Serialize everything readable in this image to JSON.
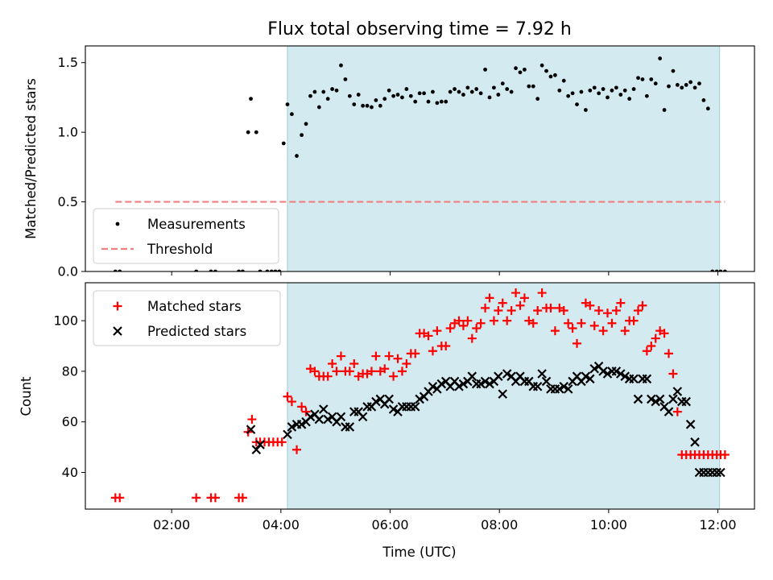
{
  "chart_data": [
    {
      "type": "scatter",
      "title": "Flux total observing time = 7.92 h",
      "ylabel": "Matched/Predicted stars",
      "xlabel": "",
      "xlim": [
        0.42,
        12.67
      ],
      "ylim": [
        0,
        1.62
      ],
      "yticks": [
        0.0,
        0.5,
        1.0,
        1.5
      ],
      "ytick_labels": [
        "0.0",
        "0.5",
        "1.0",
        "1.5"
      ],
      "xticks": [
        2,
        4,
        6,
        8,
        10,
        12
      ],
      "show_xtick_labels": false,
      "shaded_interval": [
        4.12,
        12.03
      ],
      "shade_color": "#d3eaf0",
      "threshold": {
        "value": 0.5,
        "x_range": [
          0.97,
          12.13
        ],
        "color": "#f08080",
        "label": "Threshold"
      },
      "legend": {
        "placement": "lower-left",
        "entries": [
          "Measurements",
          "Threshold"
        ]
      },
      "series": [
        {
          "name": "Measurements",
          "marker": "dot",
          "color": "#000000",
          "x": [
            0.97,
            1.05,
            2.45,
            2.72,
            2.8,
            3.23,
            3.3,
            3.4,
            3.45,
            3.55,
            3.62,
            3.75,
            3.83,
            3.9,
            3.97,
            4.05,
            4.12,
            4.2,
            4.29,
            4.38,
            4.46,
            4.54,
            4.62,
            4.7,
            4.78,
            4.86,
            4.94,
            5.02,
            5.1,
            5.18,
            5.26,
            5.34,
            5.42,
            5.5,
            5.58,
            5.66,
            5.74,
            5.82,
            5.9,
            5.98,
            6.06,
            6.14,
            6.22,
            6.3,
            6.38,
            6.46,
            6.54,
            6.62,
            6.7,
            6.78,
            6.86,
            6.94,
            7.02,
            7.1,
            7.18,
            7.26,
            7.34,
            7.42,
            7.5,
            7.58,
            7.66,
            7.74,
            7.82,
            7.9,
            7.98,
            8.06,
            8.14,
            8.22,
            8.3,
            8.38,
            8.46,
            8.54,
            8.62,
            8.7,
            8.78,
            8.86,
            8.94,
            9.02,
            9.1,
            9.18,
            9.26,
            9.34,
            9.42,
            9.5,
            9.58,
            9.66,
            9.74,
            9.82,
            9.9,
            9.98,
            10.06,
            10.14,
            10.22,
            10.3,
            10.38,
            10.46,
            10.54,
            10.62,
            10.7,
            10.78,
            10.86,
            10.94,
            11.02,
            11.1,
            11.18,
            11.26,
            11.34,
            11.42,
            11.5,
            11.58,
            11.66,
            11.74,
            11.82,
            11.9,
            11.98,
            12.05,
            12.13
          ],
          "y": [
            0,
            0,
            0,
            0,
            0,
            0,
            0,
            1.0,
            1.24,
            1.0,
            0,
            0,
            0,
            0,
            0,
            0.92,
            1.2,
            1.13,
            0.83,
            0.98,
            1.06,
            1.26,
            1.29,
            1.18,
            1.29,
            1.24,
            1.31,
            1.3,
            1.48,
            1.38,
            1.26,
            1.2,
            1.27,
            1.19,
            1.19,
            1.18,
            1.23,
            1.19,
            1.24,
            1.3,
            1.26,
            1.27,
            1.25,
            1.31,
            1.26,
            1.22,
            1.28,
            1.28,
            1.22,
            1.29,
            1.21,
            1.22,
            1.22,
            1.29,
            1.31,
            1.29,
            1.27,
            1.32,
            1.29,
            1.31,
            1.28,
            1.45,
            1.25,
            1.32,
            1.27,
            1.35,
            1.31,
            1.29,
            1.46,
            1.43,
            1.45,
            1.33,
            1.33,
            1.24,
            1.48,
            1.44,
            1.4,
            1.41,
            1.3,
            1.37,
            1.26,
            1.28,
            1.2,
            1.29,
            1.16,
            1.3,
            1.32,
            1.28,
            1.31,
            1.25,
            1.3,
            1.32,
            1.27,
            1.3,
            1.24,
            1.31,
            1.39,
            1.38,
            1.26,
            1.38,
            1.35,
            1.53,
            1.16,
            1.33,
            1.44,
            1.34,
            1.32,
            1.34,
            1.36,
            1.32,
            1.35,
            1.23,
            1.17,
            0.0,
            0.0,
            0.0,
            0.0
          ],
          "x_clip_note": "subset of visible dots"
        }
      ]
    },
    {
      "type": "scatter",
      "title": "",
      "ylabel": "Count",
      "xlabel": "Time (UTC)",
      "xlim": [
        0.42,
        12.67
      ],
      "ylim": [
        25.5,
        115
      ],
      "yticks": [
        40,
        60,
        80,
        100
      ],
      "ytick_labels": [
        "40",
        "60",
        "80",
        "100"
      ],
      "xticks": [
        2,
        4,
        6,
        8,
        10,
        12
      ],
      "xtick_labels": [
        "02:00",
        "04:00",
        "06:00",
        "08:00",
        "10:00",
        "12:00"
      ],
      "shaded_interval": [
        4.12,
        12.03
      ],
      "shade_color": "#d3eaf0",
      "legend": {
        "placement": "top-left",
        "entries": [
          "Matched stars",
          "Predicted stars"
        ]
      },
      "series": [
        {
          "name": "Matched stars",
          "marker": "plus",
          "color": "#ff0000",
          "x": [
            0.97,
            1.05,
            2.45,
            2.72,
            2.8,
            3.23,
            3.3,
            3.4,
            3.47,
            3.55,
            3.62,
            3.7,
            3.78,
            3.86,
            3.94,
            4.02,
            4.12,
            4.2,
            4.29,
            4.38,
            4.46,
            4.54,
            4.62,
            4.7,
            4.78,
            4.86,
            4.94,
            5.02,
            5.1,
            5.18,
            5.26,
            5.34,
            5.42,
            5.5,
            5.58,
            5.66,
            5.74,
            5.82,
            5.9,
            5.98,
            6.06,
            6.14,
            6.22,
            6.3,
            6.38,
            6.46,
            6.54,
            6.62,
            6.7,
            6.78,
            6.86,
            6.94,
            7.02,
            7.1,
            7.18,
            7.26,
            7.34,
            7.42,
            7.5,
            7.58,
            7.66,
            7.74,
            7.82,
            7.9,
            7.98,
            8.06,
            8.14,
            8.22,
            8.3,
            8.38,
            8.46,
            8.54,
            8.62,
            8.7,
            8.78,
            8.86,
            8.94,
            9.02,
            9.1,
            9.18,
            9.26,
            9.34,
            9.42,
            9.5,
            9.58,
            9.66,
            9.74,
            9.82,
            9.9,
            9.98,
            10.06,
            10.14,
            10.22,
            10.3,
            10.38,
            10.46,
            10.54,
            10.62,
            10.7,
            10.78,
            10.86,
            10.94,
            11.02,
            11.1,
            11.18,
            11.26,
            11.34,
            11.42,
            11.5,
            11.58,
            11.66,
            11.74,
            11.82,
            11.9,
            11.98,
            12.05,
            12.13
          ],
          "y": [
            30,
            30,
            30,
            30,
            30,
            30,
            30,
            56,
            61,
            52,
            52,
            52,
            52,
            52,
            52,
            52,
            70,
            68,
            49,
            66,
            64,
            81,
            80,
            78,
            78,
            78,
            83,
            80,
            86,
            80,
            80,
            83,
            78,
            79,
            79,
            80,
            86,
            80,
            81,
            86,
            78,
            85,
            80,
            83,
            87,
            87,
            95,
            95,
            94,
            88,
            96,
            90,
            90,
            97,
            99,
            100,
            98,
            100,
            93,
            97,
            99,
            105,
            109,
            100,
            104,
            107,
            100,
            104,
            111,
            106,
            109,
            100,
            99,
            104,
            111,
            105,
            105,
            96,
            105,
            104,
            99,
            97,
            91,
            99,
            107,
            106,
            98,
            104,
            96,
            103,
            99,
            104,
            107,
            96,
            100,
            100,
            104,
            106,
            88,
            90,
            93,
            96,
            95,
            87,
            79,
            64,
            47,
            47,
            47,
            47,
            47,
            47,
            47,
            47,
            47,
            47,
            47
          ],
          "x_clip_note": "subset of visible markers"
        },
        {
          "name": "Predicted stars",
          "marker": "x",
          "color": "#000000",
          "x": [
            3.45,
            3.55,
            3.62,
            4.12,
            4.2,
            4.29,
            4.38,
            4.46,
            4.54,
            4.62,
            4.7,
            4.78,
            4.86,
            4.94,
            5.02,
            5.1,
            5.18,
            5.26,
            5.34,
            5.42,
            5.5,
            5.58,
            5.66,
            5.74,
            5.82,
            5.9,
            5.98,
            6.06,
            6.14,
            6.22,
            6.3,
            6.38,
            6.46,
            6.54,
            6.62,
            6.7,
            6.78,
            6.86,
            6.94,
            7.02,
            7.1,
            7.18,
            7.26,
            7.34,
            7.42,
            7.5,
            7.58,
            7.66,
            7.74,
            7.82,
            7.9,
            7.98,
            8.06,
            8.14,
            8.22,
            8.3,
            8.38,
            8.46,
            8.54,
            8.62,
            8.7,
            8.78,
            8.86,
            8.94,
            9.02,
            9.1,
            9.18,
            9.26,
            9.34,
            9.42,
            9.5,
            9.58,
            9.66,
            9.74,
            9.82,
            9.9,
            9.98,
            10.06,
            10.14,
            10.22,
            10.3,
            10.38,
            10.46,
            10.54,
            10.62,
            10.7,
            10.78,
            10.86,
            10.94,
            11.02,
            11.1,
            11.18,
            11.26,
            11.34,
            11.42,
            11.5,
            11.58,
            11.66,
            11.74,
            11.82,
            11.9,
            11.98,
            12.05
          ],
          "y": [
            57,
            49,
            51,
            55,
            58,
            59,
            59,
            60,
            62,
            63,
            61,
            65,
            61,
            62,
            60,
            62,
            58,
            58,
            64,
            64,
            62,
            66,
            66,
            68,
            69,
            67,
            69,
            65,
            64,
            66,
            66,
            66,
            66,
            69,
            70,
            72,
            74,
            73,
            75,
            76,
            74,
            76,
            74,
            75,
            76,
            78,
            75,
            75,
            76,
            75,
            76,
            78,
            71,
            79,
            78,
            76,
            78,
            76,
            76,
            74,
            74,
            79,
            76,
            73,
            73,
            73,
            74,
            73,
            76,
            78,
            76,
            78,
            77,
            81,
            82,
            80,
            79,
            80,
            80,
            79,
            78,
            77,
            77,
            69,
            77,
            77,
            69,
            68,
            69,
            66,
            64,
            69,
            72,
            68,
            68,
            59,
            52,
            40,
            40,
            40,
            40,
            40,
            40
          ],
          "x_clip_note": "subset of visible markers"
        }
      ]
    }
  ]
}
